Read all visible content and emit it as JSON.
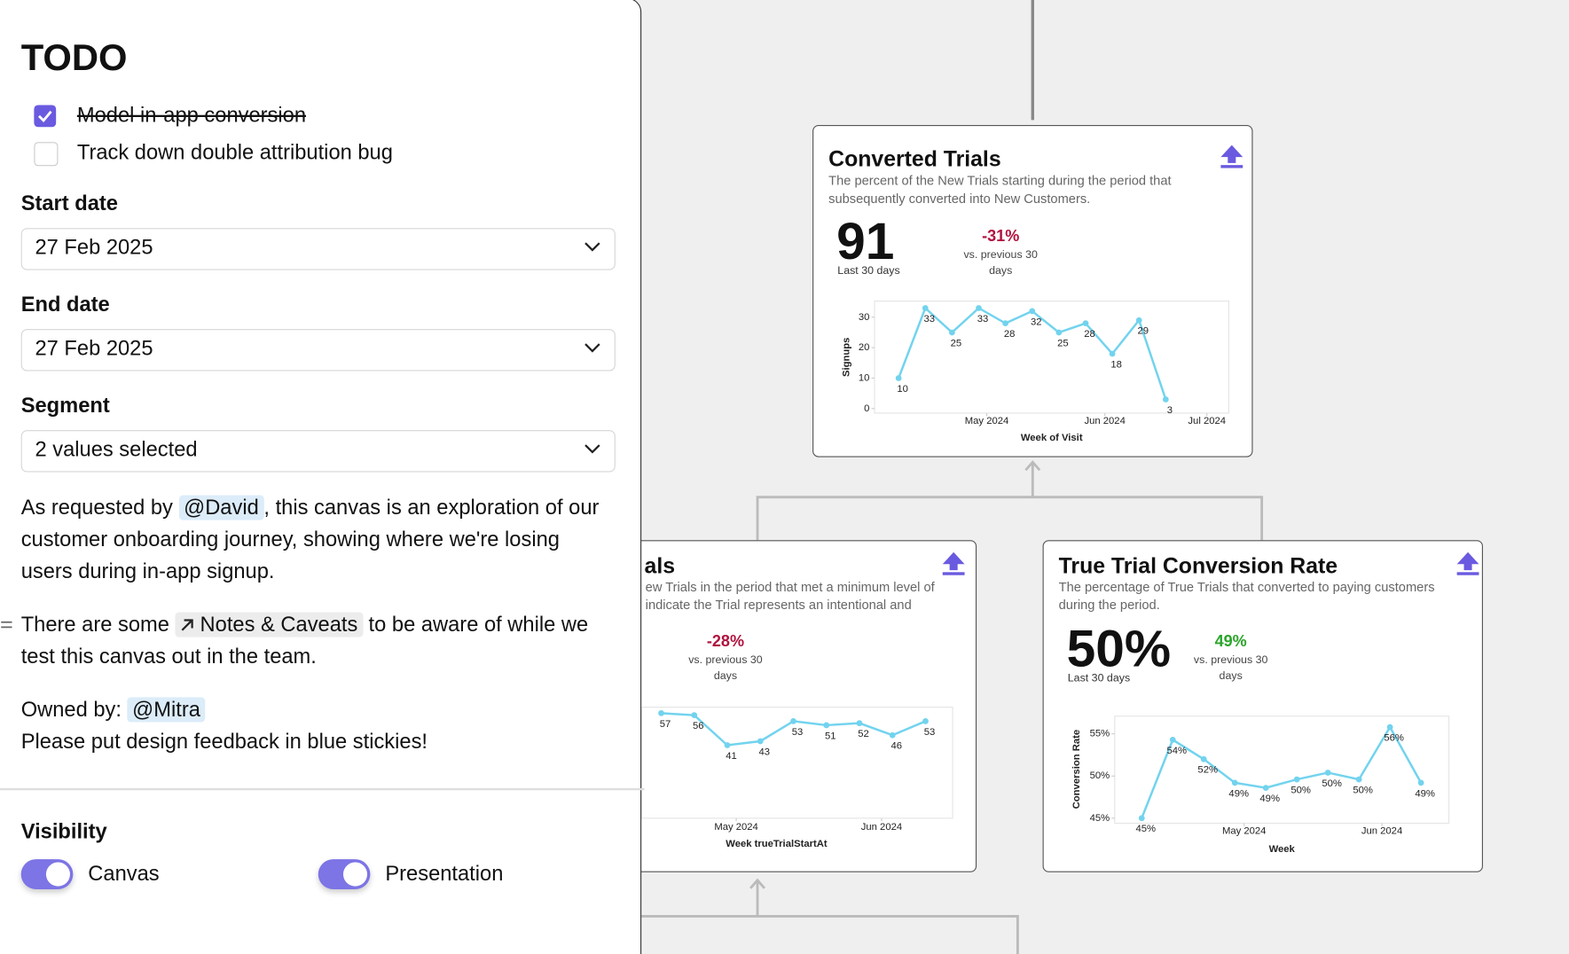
{
  "sidebar": {
    "title": "TODO",
    "todos": [
      {
        "label": "Model in-app conversion",
        "done": true
      },
      {
        "label": "Track down double attribution bug",
        "done": false
      }
    ],
    "fields": [
      {
        "label": "Start date",
        "value": "27 Feb 2025"
      },
      {
        "label": "End date",
        "value": "27 Feb 2025"
      },
      {
        "label": "Segment",
        "value": "2 values selected"
      }
    ],
    "description": {
      "before": "As requested by",
      "mention": "@David",
      "after": ", this canvas is an exploration of our customer onboarding journey, showing where we're losing users during in-app signup."
    },
    "notes": {
      "before": "There are some",
      "link": "Notes & Caveats",
      "after": "to be aware of while we test this canvas out in the team."
    },
    "owner": {
      "label": "Owned by:",
      "mention": "@Mitra"
    },
    "feedback": "Please put design feedback in blue stickies!",
    "visibility": {
      "label": "Visibility",
      "toggles": [
        {
          "label": "Canvas",
          "on": true
        },
        {
          "label": "Presentation",
          "on": true
        }
      ]
    }
  },
  "cards": [
    {
      "title": "Converted Trials",
      "description": "The percent of the New Trials starting during the period that subsequently converted into New Customers.",
      "metric": "91",
      "metric_label": "Last 30 days",
      "change": "-31%",
      "change_color": "#b0123e",
      "change_label": "vs. previous 30 days",
      "chart": {
        "type": "line",
        "color": "#72d3ee",
        "y_label": "Signups",
        "x_label": "Week of Visit",
        "categories": [
          null,
          null,
          null,
          null,
          null,
          null,
          null,
          null,
          null,
          null,
          null
        ],
        "values": [
          10,
          33,
          25,
          33,
          28,
          32,
          25,
          28,
          18,
          29,
          3
        ],
        "ylim": [
          -1.5,
          35.3
        ],
        "yticks": [
          0,
          10,
          20,
          30
        ],
        "xlim": [
          -0.9,
          12.36
        ],
        "xticks": [
          {
            "value": 3.3,
            "label": "May 2024"
          },
          {
            "value": 7.72,
            "label": "Jun 2024"
          },
          {
            "value": 11.54,
            "label": "Jul 2024"
          }
        ]
      }
    },
    {
      "title": "als",
      "description_lines": [
        "ew Trials in the period that met a minimum level of",
        "indicate the Trial represents an intentional and"
      ],
      "change": "-28%",
      "change_color": "#b0123e",
      "change_label": "vs. previous 30 days",
      "chart": {
        "type": "line",
        "color": "#72d3ee",
        "x_label": "Week trueTrialStartAt",
        "categories": [
          null,
          null,
          null,
          null,
          null,
          null,
          null,
          null,
          null
        ],
        "values": [
          57,
          56,
          41,
          43,
          53,
          51,
          52,
          46,
          53
        ],
        "ylim": [
          4.5,
          60
        ],
        "xlim": [
          -0.6,
          8.82
        ],
        "xticks": [
          {
            "value": 2.27,
            "label": "May 2024"
          },
          {
            "value": 6.67,
            "label": "Jun 2024"
          }
        ]
      }
    },
    {
      "title": "True Trial Conversion Rate",
      "description": "The percentage of True Trials that converted to paying customers during the period.",
      "metric": "50%",
      "metric_label": "Last 30 days",
      "change": "49%",
      "change_color": "#2aa52a",
      "change_label": "vs. previous 30 days",
      "chart": {
        "type": "line",
        "color": "#72d3ee",
        "y_label": "Conversion Rate",
        "x_label": "Week",
        "categories": [
          null,
          null,
          null,
          null,
          null,
          null,
          null,
          null,
          null,
          null
        ],
        "values": [
          45,
          54.3,
          52,
          49.2,
          48.6,
          49.6,
          50.4,
          49.6,
          55.8,
          49.2
        ],
        "value_labels": [
          "45%",
          "54%",
          "52%",
          "49%",
          "49%",
          "50%",
          "50%",
          "50%",
          "56%",
          "49%"
        ],
        "ylim": [
          44.4,
          57.1
        ],
        "yticks": [
          {
            "value": 45,
            "label": "45%"
          },
          {
            "value": 50,
            "label": "50%"
          },
          {
            "value": 55,
            "label": "55%"
          }
        ],
        "xlim": [
          -0.87,
          9.9
        ],
        "xticks": [
          {
            "value": 3.3,
            "label": "May 2024"
          },
          {
            "value": 7.74,
            "label": "Jun 2024"
          }
        ]
      }
    }
  ]
}
